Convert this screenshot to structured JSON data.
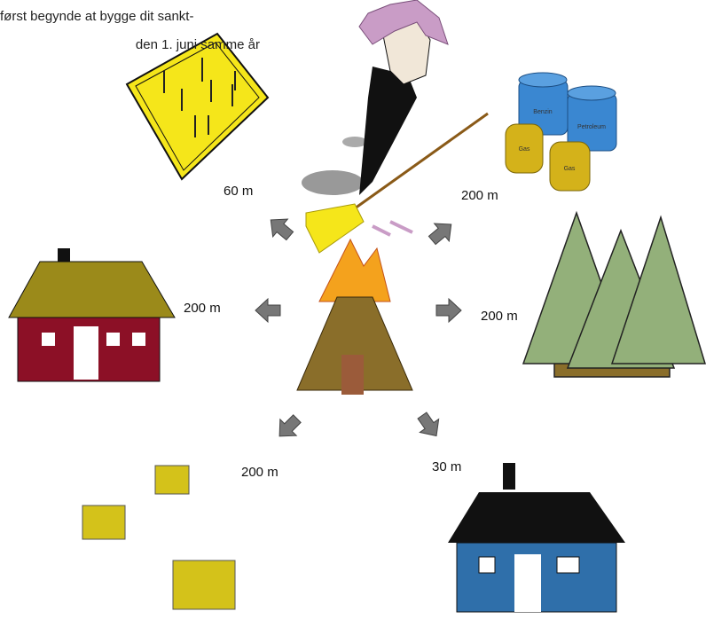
{
  "intro": [
    "først begynde at bygge dit sankt-",
    "den 1. juni samme år"
  ],
  "distances": {
    "field": "60 m",
    "fuel": "200 m",
    "red_house": "200 m",
    "forest": "200 m",
    "hay": "200 m",
    "blue_house": "30 m"
  },
  "barrels": [
    "Benzin",
    "Petroleum",
    "Gas",
    "Gas"
  ]
}
